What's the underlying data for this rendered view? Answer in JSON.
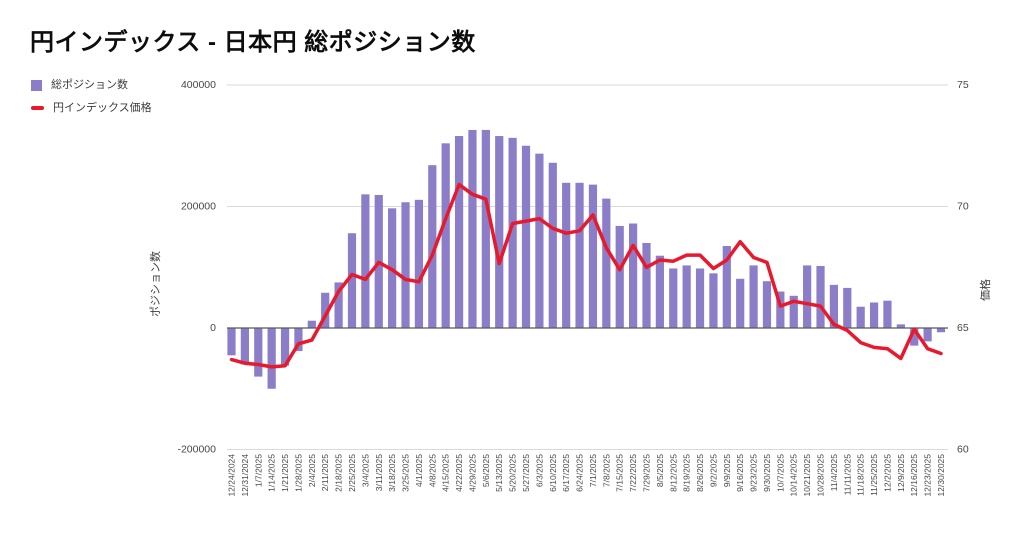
{
  "title": "円インデックス - 日本円 総ポジション数",
  "legend": [
    {
      "label": "総ポジション数",
      "marker": "square",
      "color": "#8b7dc8"
    },
    {
      "label": "円インデックス価格",
      "marker": "dash",
      "color": "#e8192c"
    }
  ],
  "chart_data": {
    "type": "bar",
    "subtype": "bar-line-combo",
    "title": "円インデックス - 日本円 総ポジション数",
    "grid": true,
    "legend_position": "top-left",
    "categories": [
      "12/24/2024",
      "12/31/2024",
      "1/7/2025",
      "1/14/2025",
      "1/21/2025",
      "1/28/2025",
      "2/4/2025",
      "2/11/2025",
      "2/18/2025",
      "2/25/2025",
      "3/4/2025",
      "3/11/2025",
      "3/18/2025",
      "3/25/2025",
      "4/1/2025",
      "4/8/2025",
      "4/15/2025",
      "4/22/2025",
      "4/29/2025",
      "5/6/2025",
      "5/13/2025",
      "5/20/2025",
      "5/27/2025",
      "6/3/2025",
      "6/10/2025",
      "6/17/2025",
      "6/24/2025",
      "7/1/2025",
      "7/8/2025",
      "7/15/2025",
      "7/22/2025",
      "7/29/2025",
      "8/5/2025",
      "8/12/2025",
      "8/19/2025",
      "8/26/2025",
      "9/2/2025",
      "9/9/2025",
      "9/16/2025",
      "9/23/2025",
      "9/30/2025",
      "10/7/2025",
      "10/14/2025",
      "10/21/2025",
      "10/28/2025",
      "11/4/2025",
      "11/11/2025",
      "11/18/2025",
      "11/25/2025",
      "12/2/2025",
      "12/9/2025",
      "12/16/2025",
      "12/23/2025",
      "12/30/2025"
    ],
    "series": [
      {
        "name": "総ポジション数",
        "type": "bar",
        "axis": "left",
        "color": "#8b7dc8",
        "values": [
          -45000,
          -60000,
          -80000,
          -100000,
          -62000,
          -38000,
          12000,
          58000,
          75000,
          156000,
          220000,
          219000,
          197000,
          207000,
          211000,
          268000,
          304000,
          316000,
          326000,
          326000,
          316000,
          313000,
          300000,
          287000,
          272000,
          239000,
          239000,
          236000,
          213000,
          168000,
          172000,
          140000,
          119000,
          98000,
          103000,
          98000,
          90000,
          135000,
          81000,
          103000,
          77000,
          60000,
          53000,
          103000,
          102000,
          71000,
          66000,
          35000,
          42000,
          45000,
          6000,
          -29000,
          -22000,
          -7000
        ]
      },
      {
        "name": "円インデックス価格",
        "type": "line",
        "axis": "right",
        "color": "#e8192c",
        "values": [
          63.7,
          63.55,
          63.5,
          63.4,
          63.45,
          64.35,
          64.5,
          65.5,
          66.5,
          67.2,
          67.0,
          67.7,
          67.4,
          67.0,
          66.9,
          68.0,
          69.5,
          70.9,
          70.5,
          70.3,
          67.65,
          69.3,
          69.4,
          69.5,
          69.1,
          68.9,
          69.0,
          69.65,
          68.3,
          67.4,
          68.4,
          67.5,
          67.8,
          67.75,
          68.0,
          68.0,
          67.45,
          67.8,
          68.55,
          67.9,
          67.7,
          65.9,
          66.1,
          66.0,
          65.9,
          65.15,
          64.9,
          64.4,
          64.2,
          64.15,
          63.75,
          64.95,
          64.15,
          63.95
        ]
      }
    ],
    "left_axis": {
      "title": "ポジション数",
      "ticks": [
        400000,
        200000,
        0,
        -200000
      ],
      "min": -200000,
      "max": 400000
    },
    "right_axis": {
      "title": "価格",
      "ticks": [
        75,
        70,
        65,
        60
      ],
      "min": 60,
      "max": 75
    },
    "colors": {
      "gridline": "#dadada",
      "zero_axis": "#595959",
      "tick_text": "#474747"
    }
  }
}
